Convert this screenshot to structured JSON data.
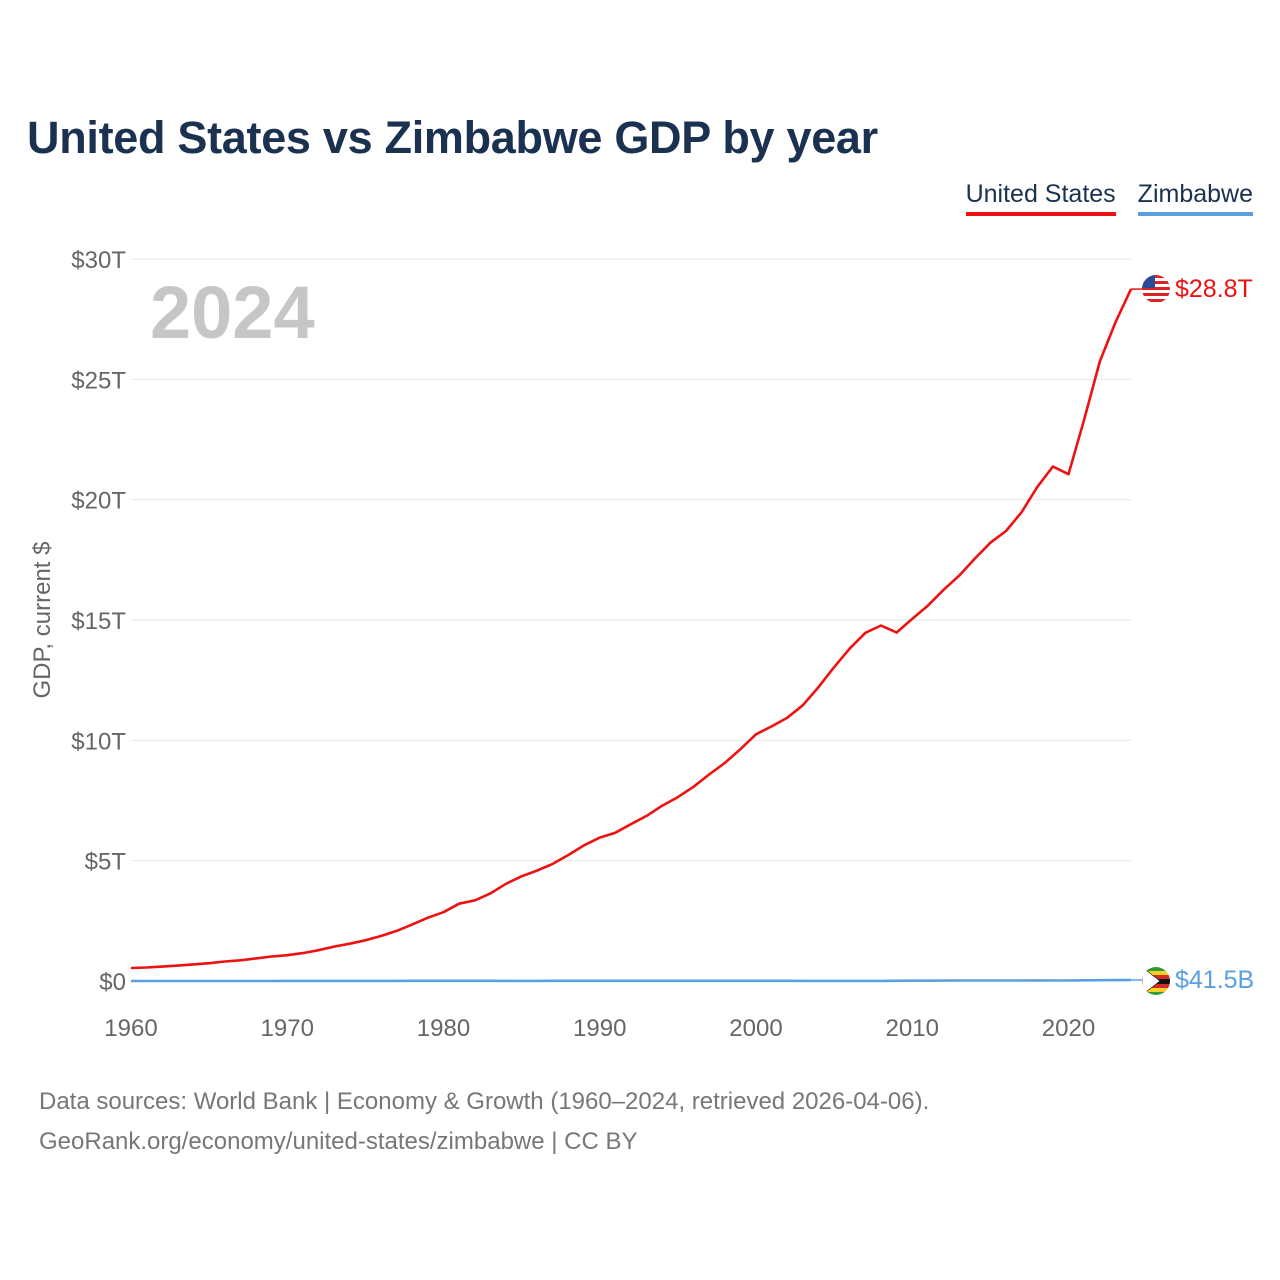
{
  "title": "United States vs Zimbabwe GDP by year",
  "legend": {
    "us": "United States",
    "zw": "Zimbabwe"
  },
  "year_watermark": "2024",
  "footer": {
    "line1": "Data sources: World Bank | Economy & Growth (1960–2024, retrieved 2026-04-06).",
    "line2": "GeoRank.org/economy/united-states/zimbabwe | CC BY"
  },
  "colors": {
    "us": "#ee1111",
    "zw": "#5aa0e0",
    "title": "#1b3150"
  },
  "chart_data": {
    "type": "line",
    "title": "United States vs Zimbabwe GDP by year",
    "xlabel": "",
    "ylabel": "GDP, current $",
    "xlim": [
      1960,
      2024
    ],
    "ylim": [
      0,
      30
    ],
    "y_unit": "trillion USD",
    "x_ticks": [
      1960,
      1970,
      1980,
      1990,
      2000,
      2010,
      2020
    ],
    "y_ticks": [
      {
        "value": 0,
        "label": "$0"
      },
      {
        "value": 5,
        "label": "$5T"
      },
      {
        "value": 10,
        "label": "$10T"
      },
      {
        "value": 15,
        "label": "$15T"
      },
      {
        "value": 20,
        "label": "$20T"
      },
      {
        "value": 25,
        "label": "$25T"
      },
      {
        "value": 30,
        "label": "$30T"
      }
    ],
    "grid": true,
    "legend_position": "top-right",
    "x": [
      1960,
      1961,
      1962,
      1963,
      1964,
      1965,
      1966,
      1967,
      1968,
      1969,
      1970,
      1971,
      1972,
      1973,
      1974,
      1975,
      1976,
      1977,
      1978,
      1979,
      1980,
      1981,
      1982,
      1983,
      1984,
      1985,
      1986,
      1987,
      1988,
      1989,
      1990,
      1991,
      1992,
      1993,
      1994,
      1995,
      1996,
      1997,
      1998,
      1999,
      2000,
      2001,
      2002,
      2003,
      2004,
      2005,
      2006,
      2007,
      2008,
      2009,
      2010,
      2011,
      2012,
      2013,
      2014,
      2015,
      2016,
      2017,
      2018,
      2019,
      2020,
      2021,
      2022,
      2023,
      2024
    ],
    "series": [
      {
        "name": "United States",
        "end_label": "$28.8T",
        "values": [
          0.54,
          0.56,
          0.6,
          0.64,
          0.69,
          0.74,
          0.81,
          0.86,
          0.94,
          1.02,
          1.07,
          1.16,
          1.28,
          1.43,
          1.55,
          1.69,
          1.87,
          2.08,
          2.35,
          2.63,
          2.86,
          3.21,
          3.35,
          3.64,
          4.04,
          4.35,
          4.59,
          4.87,
          5.24,
          5.64,
          5.96,
          6.16,
          6.52,
          6.86,
          7.29,
          7.64,
          8.07,
          8.58,
          9.06,
          9.63,
          10.25,
          10.58,
          10.94,
          11.46,
          12.21,
          13.04,
          13.82,
          14.47,
          14.77,
          14.48,
          15.05,
          15.6,
          16.25,
          16.84,
          17.55,
          18.21,
          18.7,
          19.48,
          20.53,
          21.38,
          21.06,
          23.32,
          25.74,
          27.36,
          28.75
        ]
      },
      {
        "name": "Zimbabwe",
        "end_label": "$41.5B",
        "values": [
          0.00105,
          0.0011,
          0.00112,
          0.00116,
          0.00122,
          0.00131,
          0.00138,
          0.00154,
          0.00162,
          0.00188,
          0.00235,
          0.00282,
          0.00326,
          0.00414,
          0.00487,
          0.00537,
          0.00561,
          0.00617,
          0.00649,
          0.0075,
          0.00669,
          0.00843,
          0.00894,
          0.00727,
          0.00623,
          0.00563,
          0.00611,
          0.00664,
          0.00732,
          0.00781,
          0.00876,
          0.00874,
          0.00682,
          0.00629,
          0.00687,
          0.00757,
          0.00863,
          0.0086,
          0.00629,
          0.00694,
          0.00668,
          0.00677,
          0.00634,
          0.00574,
          0.00575,
          0.00576,
          0.00544,
          0.00529,
          0.00441,
          0.00966,
          0.01204,
          0.0141,
          0.01711,
          0.01909,
          0.0195,
          0.01996,
          0.02055,
          0.02204,
          0.0241,
          0.02183,
          0.02187,
          0.02837,
          0.03279,
          0.03537,
          0.0415
        ]
      }
    ]
  }
}
